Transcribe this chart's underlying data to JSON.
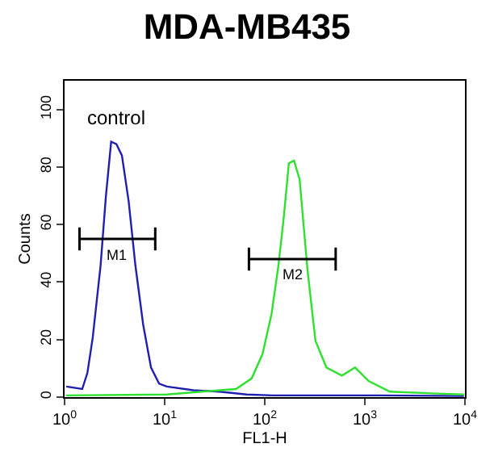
{
  "chart_data": {
    "type": "line",
    "title": "MDA-MB435",
    "xlabel": "FL1-H",
    "ylabel": "Counts",
    "log": "x",
    "xlim": [
      1,
      10000
    ],
    "ylim": [
      0,
      110
    ],
    "xticks": [
      {
        "value": 1,
        "label": "10$^{0}$"
      },
      {
        "value": 10,
        "label": "10$^{1}$"
      },
      {
        "value": 100,
        "label": "10$^{2}$"
      },
      {
        "value": 1000,
        "label": "10$^{3}$"
      },
      {
        "value": 10000,
        "label": "10$^{4}$"
      }
    ],
    "yticks": [
      0,
      20,
      40,
      60,
      80,
      100
    ],
    "grid": false,
    "legend": false,
    "marker": "none",
    "annotations": [
      "control"
    ],
    "series": [
      {
        "color": "#2020b0",
        "x": [
          1.04,
          1.5,
          1.69,
          1.91,
          2.29,
          2.59,
          2.92,
          3.3,
          3.74,
          4.37,
          5.1,
          6.1,
          7.3,
          8.8,
          10.5,
          19.4,
          35.5,
          66,
          120,
          1380,
          9770
        ],
        "values": [
          3.7,
          2.8,
          8.4,
          20.6,
          45.8,
          70,
          88.8,
          87.9,
          84,
          68,
          45.8,
          25.2,
          10.3,
          4.7,
          3.7,
          2.4,
          1.9,
          0.9,
          0.6,
          0.6,
          0.4
        ]
      },
      {
        "color": "#30e030",
        "x": [
          1.04,
          10.5,
          35.5,
          51.5,
          74,
          95,
          117,
          137,
          155,
          174,
          196,
          223,
          268,
          321,
          413,
          590,
          800,
          1090,
          1780,
          4680,
          9770
        ],
        "values": [
          0.6,
          0.9,
          2.4,
          2.8,
          6.5,
          15,
          29,
          45.8,
          62.6,
          81.3,
          82.2,
          75.7,
          43.9,
          19.6,
          10.3,
          7.5,
          10.3,
          5.6,
          1.9,
          1.3,
          0.9
        ]
      },
      {
        "name": "M1",
        "color": "#000000",
        "x": [
          1.41,
          1.41,
          1.41,
          8.05,
          8.05,
          8.05
        ],
        "values": [
          59,
          51,
          55,
          55,
          59,
          51
        ]
      },
      {
        "name": "M2",
        "color": "#000000",
        "x": [
          69.5,
          69.5,
          69.5,
          511,
          511,
          511
        ],
        "values": [
          52,
          44,
          48,
          48,
          52,
          44
        ]
      }
    ]
  }
}
